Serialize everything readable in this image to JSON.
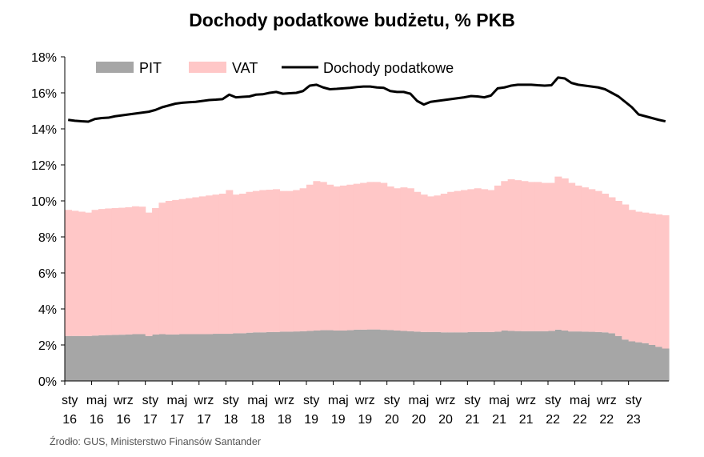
{
  "chart_data": {
    "type": "area",
    "title": "Dochody podatkowe budżetu, % PKB",
    "source": "Źrodło: GUS, Ministerstwo Finansów Santander",
    "ylim": [
      0,
      18
    ],
    "y_ticks": [
      "0%",
      "2%",
      "4%",
      "6%",
      "8%",
      "10%",
      "12%",
      "14%",
      "16%",
      "18%"
    ],
    "y_tick_values": [
      0,
      2,
      4,
      6,
      8,
      10,
      12,
      14,
      16,
      18
    ],
    "x_tick_labels": [
      {
        "index": 0,
        "top": "sty",
        "bottom": "16"
      },
      {
        "index": 4,
        "top": "maj",
        "bottom": "16"
      },
      {
        "index": 8,
        "top": "wrz",
        "bottom": "16"
      },
      {
        "index": 12,
        "top": "sty",
        "bottom": "17"
      },
      {
        "index": 16,
        "top": "maj",
        "bottom": "17"
      },
      {
        "index": 20,
        "top": "wrz",
        "bottom": "17"
      },
      {
        "index": 24,
        "top": "sty",
        "bottom": "18"
      },
      {
        "index": 28,
        "top": "maj",
        "bottom": "18"
      },
      {
        "index": 32,
        "top": "wrz",
        "bottom": "18"
      },
      {
        "index": 36,
        "top": "sty",
        "bottom": "19"
      },
      {
        "index": 40,
        "top": "maj",
        "bottom": "19"
      },
      {
        "index": 44,
        "top": "wrz",
        "bottom": "19"
      },
      {
        "index": 48,
        "top": "sty",
        "bottom": "20"
      },
      {
        "index": 52,
        "top": "maj",
        "bottom": "20"
      },
      {
        "index": 56,
        "top": "wrz",
        "bottom": "20"
      },
      {
        "index": 60,
        "top": "sty",
        "bottom": "21"
      },
      {
        "index": 64,
        "top": "maj",
        "bottom": "21"
      },
      {
        "index": 68,
        "top": "wrz",
        "bottom": "21"
      },
      {
        "index": 72,
        "top": "sty",
        "bottom": "22"
      },
      {
        "index": 76,
        "top": "maj",
        "bottom": "22"
      },
      {
        "index": 80,
        "top": "wrz",
        "bottom": "22"
      },
      {
        "index": 84,
        "top": "sty",
        "bottom": "23"
      }
    ],
    "legend_position": "top",
    "grid": false,
    "series": [
      {
        "name": "PIT",
        "kind": "area",
        "color": "#a6a6a6",
        "values": [
          2.5,
          2.5,
          2.5,
          2.5,
          2.52,
          2.54,
          2.55,
          2.56,
          2.57,
          2.58,
          2.6,
          2.6,
          2.5,
          2.58,
          2.6,
          2.58,
          2.58,
          2.6,
          2.6,
          2.6,
          2.6,
          2.6,
          2.62,
          2.62,
          2.62,
          2.65,
          2.65,
          2.68,
          2.7,
          2.7,
          2.72,
          2.72,
          2.74,
          2.74,
          2.75,
          2.76,
          2.78,
          2.8,
          2.82,
          2.82,
          2.8,
          2.8,
          2.82,
          2.85,
          2.85,
          2.86,
          2.86,
          2.84,
          2.83,
          2.8,
          2.78,
          2.76,
          2.74,
          2.72,
          2.72,
          2.72,
          2.7,
          2.7,
          2.7,
          2.7,
          2.72,
          2.72,
          2.72,
          2.72,
          2.74,
          2.8,
          2.78,
          2.77,
          2.76,
          2.76,
          2.76,
          2.76,
          2.78,
          2.85,
          2.8,
          2.75,
          2.75,
          2.74,
          2.73,
          2.72,
          2.7,
          2.65,
          2.5,
          2.3,
          2.2,
          2.15,
          2.1,
          2.0,
          1.9,
          1.8
        ]
      },
      {
        "name": "VAT",
        "kind": "area",
        "color": "#ffc7c7",
        "values": [
          9.5,
          9.45,
          9.4,
          9.35,
          9.5,
          9.55,
          9.58,
          9.6,
          9.62,
          9.65,
          9.7,
          9.68,
          9.35,
          9.6,
          9.9,
          10.0,
          10.05,
          10.1,
          10.15,
          10.2,
          10.25,
          10.3,
          10.35,
          10.4,
          10.6,
          10.35,
          10.4,
          10.5,
          10.55,
          10.6,
          10.62,
          10.65,
          10.55,
          10.55,
          10.6,
          10.7,
          10.9,
          11.1,
          11.05,
          10.9,
          10.8,
          10.85,
          10.9,
          10.95,
          11.0,
          11.05,
          11.05,
          11.0,
          10.8,
          10.7,
          10.75,
          10.7,
          10.5,
          10.35,
          10.25,
          10.3,
          10.4,
          10.5,
          10.55,
          10.6,
          10.65,
          10.7,
          10.65,
          10.6,
          10.85,
          11.1,
          11.2,
          11.15,
          11.1,
          11.05,
          11.05,
          11.0,
          11.0,
          11.35,
          11.25,
          11.0,
          10.85,
          10.75,
          10.65,
          10.55,
          10.4,
          10.2,
          10.0,
          9.8,
          9.5,
          9.4,
          9.35,
          9.3,
          9.25,
          9.2
        ]
      },
      {
        "name": "Dochody podatkowe",
        "kind": "line",
        "color": "#000000",
        "values": [
          14.5,
          14.45,
          14.42,
          14.4,
          14.55,
          14.6,
          14.62,
          14.7,
          14.75,
          14.8,
          14.85,
          14.9,
          14.95,
          15.05,
          15.2,
          15.3,
          15.4,
          15.45,
          15.48,
          15.5,
          15.55,
          15.6,
          15.62,
          15.65,
          15.9,
          15.75,
          15.78,
          15.8,
          15.9,
          15.92,
          16.0,
          16.05,
          15.95,
          15.98,
          16.0,
          16.1,
          16.4,
          16.45,
          16.3,
          16.2,
          16.22,
          16.25,
          16.28,
          16.32,
          16.35,
          16.35,
          16.3,
          16.28,
          16.1,
          16.05,
          16.05,
          15.95,
          15.55,
          15.35,
          15.5,
          15.55,
          15.6,
          15.65,
          15.7,
          15.75,
          15.82,
          15.8,
          15.75,
          15.85,
          16.25,
          16.3,
          16.4,
          16.45,
          16.45,
          16.45,
          16.42,
          16.4,
          16.42,
          16.85,
          16.8,
          16.55,
          16.45,
          16.4,
          16.35,
          16.3,
          16.2,
          16.0,
          15.8,
          15.5,
          15.2,
          14.8,
          14.7,
          14.6,
          14.5,
          14.42
        ]
      }
    ]
  }
}
